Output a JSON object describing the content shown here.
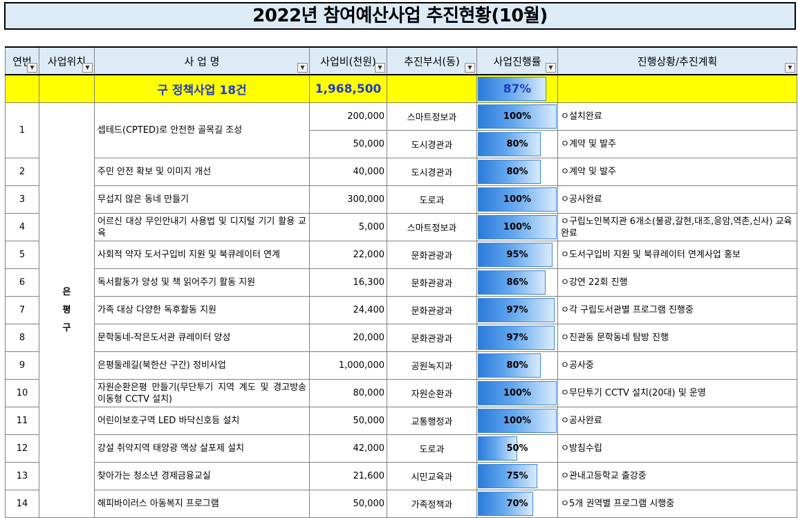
{
  "title": "2022년 참여예산사업 추진현황(10월)",
  "headers": {
    "no": "연번",
    "location": "사업위치",
    "name": "사 업 명",
    "budget": "사업비(천원)",
    "dept": "추진부서(동)",
    "progress": "사업진행률",
    "status": "진행상황/추진계획"
  },
  "summary": {
    "label": "구 정책사업 18건",
    "budget": "1,968,500",
    "progress": "87%",
    "progress_value": 87
  },
  "location_label": "은평구",
  "rows": [
    {
      "no": "1",
      "name": "셉테드(CPTED)로 안전한 골목길 조성",
      "sub": [
        {
          "budget": "200,000",
          "dept": "스마트정보과",
          "progress": "100%",
          "pv": 100,
          "status": "ㅇ설치완료"
        },
        {
          "budget": "50,000",
          "dept": "도시경관과",
          "progress": "80%",
          "pv": 80,
          "status": "ㅇ계약 및 발주"
        }
      ]
    },
    {
      "no": "2",
      "name": "주민 안전 확보 및 이미지 개선",
      "budget": "40,000",
      "dept": "도시경관과",
      "progress": "80%",
      "pv": 80,
      "status": "ㅇ계약 및 발주"
    },
    {
      "no": "3",
      "name": "무섭지 않은 동네 만들기",
      "budget": "300,000",
      "dept": "도로과",
      "progress": "100%",
      "pv": 100,
      "status": "ㅇ공사완료"
    },
    {
      "no": "4",
      "name": "어르신 대상 무인안내기 사용법 및 디지털 기기 활용 교육",
      "budget": "5,000",
      "dept": "스마트정보과",
      "progress": "100%",
      "pv": 100,
      "status": "ㅇ구립노인복지관 6개소(불광,갈현,대조,응암,역촌,신사) 교육완료"
    },
    {
      "no": "5",
      "name": "사회적 약자 도서구입비 지원 및 북큐레이터 연계",
      "budget": "22,000",
      "dept": "문화관광과",
      "progress": "95%",
      "pv": 95,
      "status": "ㅇ도서구입비 지원 및 북큐레이터 연계사업 홍보"
    },
    {
      "no": "6",
      "name": "독서활동가 양성 및 책 읽어주기 활동 지원",
      "budget": "16,300",
      "dept": "문화관광과",
      "progress": "86%",
      "pv": 86,
      "status": "ㅇ강연 22회 진행"
    },
    {
      "no": "7",
      "name": "가족 대상 다양한 독후활동 지원",
      "budget": "24,400",
      "dept": "문화관광과",
      "progress": "97%",
      "pv": 97,
      "status": "ㅇ각 구립도서관별 프로그램 진행중"
    },
    {
      "no": "8",
      "name": "문학동네-작은도서관 큐레이터 양성",
      "budget": "20,000",
      "dept": "문화관광과",
      "progress": "97%",
      "pv": 97,
      "status": "ㅇ진관동 문학동네 탐방 진행"
    },
    {
      "no": "9",
      "name": "은평둘레길(북한산 구간) 정비사업",
      "budget": "1,000,000",
      "dept": "공원녹지과",
      "progress": "80%",
      "pv": 80,
      "status": "ㅇ공사중"
    },
    {
      "no": "10",
      "name": "자원순환은평 만들기(무단투기 지역 계도 및 경고방송 이동형 CCTV 설치)",
      "budget": "80,000",
      "dept": "자원순환과",
      "progress": "100%",
      "pv": 100,
      "status": "ㅇ무단투기 CCTV 설치(20대) 및 운영"
    },
    {
      "no": "11",
      "name": "어린이보호구역 LED 바닥신호등 설치",
      "budget": "50,000",
      "dept": "교통행정과",
      "progress": "100%",
      "pv": 100,
      "status": "ㅇ공사완료"
    },
    {
      "no": "12",
      "name": "강설 취약지역 태양광 액상 살포제 설치",
      "budget": "42,000",
      "dept": "도로과",
      "progress": "50%",
      "pv": 50,
      "status": "ㅇ방침수립"
    },
    {
      "no": "13",
      "name": "찾아가는 청소년 경제금융교실",
      "budget": "21,600",
      "dept": "시민교육과",
      "progress": "75%",
      "pv": 75,
      "status": "ㅇ관내고등학교 출강중"
    },
    {
      "no": "14",
      "name": "해피바이러스 아동복지 프로그램",
      "budget": "50,000",
      "dept": "가족정책과",
      "progress": "70%",
      "pv": 70,
      "status": "ㅇ5개 권역별 프로그램 시행중"
    }
  ]
}
